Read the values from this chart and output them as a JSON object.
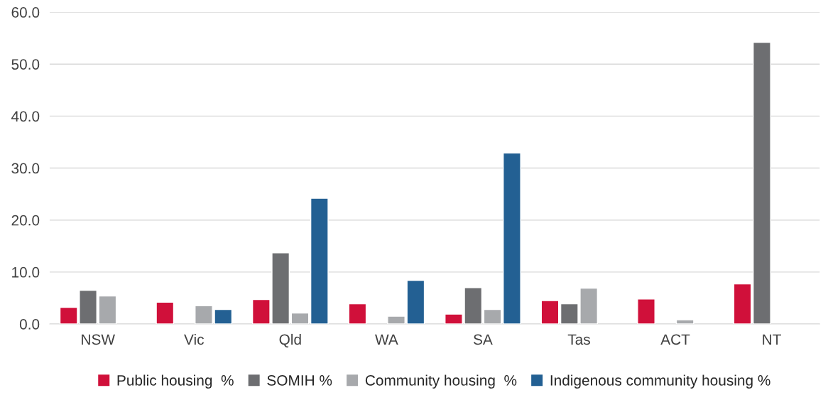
{
  "chart_data": {
    "type": "bar",
    "categories": [
      "NSW",
      "Vic",
      "Qld",
      "WA",
      "SA",
      "Tas",
      "ACT",
      "NT"
    ],
    "series": [
      {
        "name": "Public housing  %",
        "color": "#d0103a",
        "values": [
          3.2,
          4.2,
          4.7,
          3.9,
          1.9,
          4.5,
          4.8,
          7.7
        ]
      },
      {
        "name": "SOMIH %",
        "color": "#6d6e71",
        "values": [
          6.5,
          null,
          13.7,
          null,
          7.0,
          3.9,
          null,
          54.2
        ]
      },
      {
        "name": "Community housing  %",
        "color": "#a7a9ac",
        "values": [
          5.4,
          3.5,
          2.1,
          1.5,
          2.8,
          6.9,
          0.8,
          null
        ]
      },
      {
        "name": "Indigenous community housing %",
        "color": "#236093",
        "values": [
          null,
          2.8,
          24.2,
          8.4,
          32.9,
          null,
          null,
          null
        ]
      }
    ],
    "ylim": [
      0,
      60
    ],
    "yticks": [
      {
        "value": 0,
        "label": "0.0"
      },
      {
        "value": 10,
        "label": "10.0"
      },
      {
        "value": 20,
        "label": "20.0"
      },
      {
        "value": 30,
        "label": "30.0"
      },
      {
        "value": 40,
        "label": "40.0"
      },
      {
        "value": 50,
        "label": "50.0"
      },
      {
        "value": 60,
        "label": "60.0"
      }
    ],
    "grid": "y",
    "legend": "bottom"
  }
}
